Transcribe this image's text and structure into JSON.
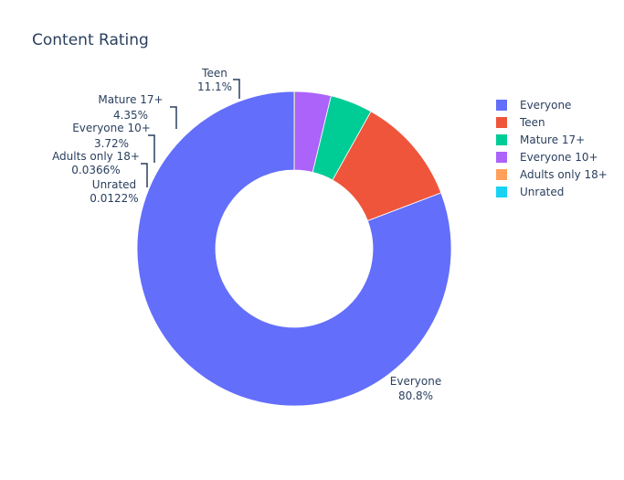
{
  "chart_data": {
    "type": "pie",
    "title": "Content Rating",
    "hole": 0.5,
    "legend_position": "top-right",
    "labels": [
      "Everyone",
      "Teen",
      "Mature 17+",
      "Everyone 10+",
      "Adults only 18+",
      "Unrated"
    ],
    "values": [
      80.8,
      11.1,
      4.35,
      3.72,
      0.0366,
      0.0122
    ],
    "percent_text": [
      "80.8%",
      "11.1%",
      "4.35%",
      "3.72%",
      "0.0366%",
      "0.0122%"
    ],
    "colors": [
      "#636efa",
      "#ef553b",
      "#00cc96",
      "#ab63fa",
      "#ffa15a",
      "#19d3f3"
    ]
  }
}
